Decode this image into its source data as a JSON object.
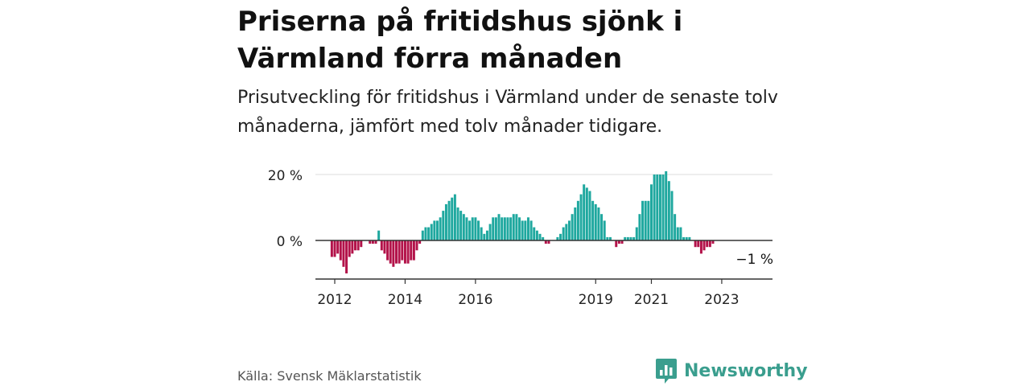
{
  "title": "Priserna på fritidshus sjönk i Värmland förra månaden",
  "subtitle": "Prisutveckling för fritidshus i Värmland under de senaste tolv månaderna, jämfört med tolv månader tidigare.",
  "source": "Källa: Svensk Mäklarstatistik",
  "brand": "Newsworthy",
  "colors": {
    "positive": "#1fa89f",
    "negative": "#b3134a",
    "brand": "#3a9e8e"
  },
  "chart_data": {
    "type": "bar",
    "x_start": "2011-12",
    "x_unit": "month",
    "ylim": [
      -12,
      21
    ],
    "y_ticks": [
      {
        "value": 0,
        "label": "0 %"
      },
      {
        "value": 20,
        "label": "20 %"
      }
    ],
    "x_ticks": [
      {
        "date": "2012-01",
        "label": "2012"
      },
      {
        "date": "2014-01",
        "label": "2014"
      },
      {
        "date": "2016-01",
        "label": "2016"
      },
      {
        "date": "2019-06",
        "label": "2019"
      },
      {
        "date": "2021-01",
        "label": "2021"
      },
      {
        "date": "2023-01",
        "label": "2023"
      }
    ],
    "annotation": {
      "label": "−1 %",
      "date": "2023-12",
      "value": -1
    },
    "values": [
      -5,
      -5,
      -4,
      -6,
      -8,
      -10,
      -5,
      -4,
      -3,
      -3,
      -2,
      null,
      null,
      -1,
      -1,
      -1,
      3,
      -3,
      -4,
      -6,
      -7,
      -8,
      -7,
      -7,
      -6,
      -7,
      -7,
      -6,
      -6,
      -3,
      -1,
      3,
      4,
      4,
      5,
      6,
      6,
      7,
      9,
      11,
      12,
      13,
      14,
      10,
      9,
      8,
      7,
      6,
      7,
      7,
      6,
      4,
      2,
      3,
      5,
      7,
      7,
      8,
      7,
      7,
      7,
      7,
      8,
      8,
      7,
      6,
      6,
      7,
      6,
      4,
      3,
      2,
      1,
      -1,
      -1,
      null,
      null,
      1,
      2,
      4,
      5,
      6,
      8,
      10,
      12,
      14,
      17,
      16,
      15,
      12,
      11,
      10,
      8,
      6,
      1,
      1,
      null,
      -2,
      -1,
      -1,
      1,
      1,
      1,
      1,
      4,
      8,
      12,
      12,
      12,
      17,
      20,
      20,
      20,
      20,
      21,
      18,
      15,
      8,
      4,
      4,
      1,
      1,
      1,
      null,
      -2,
      -2,
      -4,
      -3,
      -2,
      -2,
      -1
    ]
  }
}
